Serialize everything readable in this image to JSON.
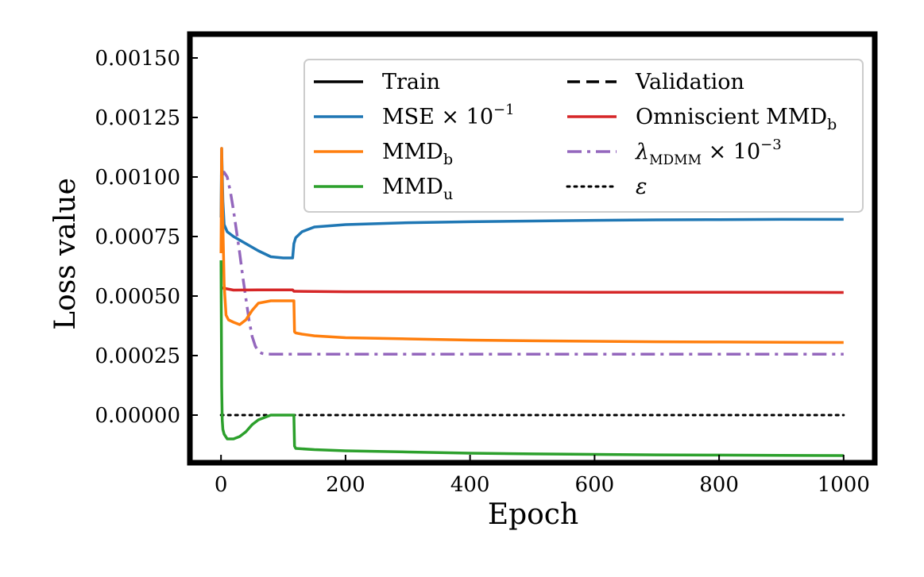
{
  "chart_data": {
    "type": "line",
    "xlabel": "Epoch",
    "ylabel": "Loss value",
    "xlim": [
      -50,
      1050
    ],
    "ylim": [
      -0.0002,
      0.0016
    ],
    "xticks": [
      0,
      200,
      400,
      600,
      800,
      1000
    ],
    "xtick_labels": [
      "0",
      "200",
      "400",
      "600",
      "800",
      "1000"
    ],
    "yticks": [
      0.0,
      0.00025,
      0.0005,
      0.00075,
      0.001,
      0.00125,
      0.0015
    ],
    "ytick_labels": [
      "0.00000",
      "0.00025",
      "0.00050",
      "0.00075",
      "0.00100",
      "0.00125",
      "0.00150"
    ],
    "grid": false,
    "legend_position": "top-right",
    "legend": [
      {
        "key": "train",
        "label": "Train",
        "color": "#000000",
        "style": "solid"
      },
      {
        "key": "mse",
        "label": "MSE × 10",
        "sup": "−1",
        "color": "#1f77b4",
        "style": "solid"
      },
      {
        "key": "mmdb",
        "label": "MMD",
        "sub": "b",
        "color": "#ff7f0e",
        "style": "solid"
      },
      {
        "key": "mmdu",
        "label": "MMD",
        "sub": "u",
        "color": "#2ca02c",
        "style": "solid"
      },
      {
        "key": "validation",
        "label": "Validation",
        "color": "#000000",
        "style": "dashed"
      },
      {
        "key": "omni",
        "label": "Omniscient MMD",
        "sub": "b",
        "color": "#d62728",
        "style": "solid"
      },
      {
        "key": "lambda",
        "label": "λ",
        "sub": "MDMM",
        "suffix": " × 10",
        "sup": "−3",
        "color": "#9467bd",
        "style": "dashdot"
      },
      {
        "key": "eps",
        "label": "ε",
        "color": "#000000",
        "style": "dotted"
      }
    ],
    "series": [
      {
        "name": "MSE × 10^-1",
        "color": "#1f77b4",
        "style": "solid",
        "x": [
          0,
          1,
          3,
          5,
          10,
          20,
          40,
          60,
          80,
          100,
          115,
          117,
          120,
          130,
          150,
          200,
          300,
          400,
          500,
          600,
          700,
          800,
          900,
          1000
        ],
        "y": [
          0.00083,
          0.00112,
          0.0009,
          0.0008,
          0.00077,
          0.00075,
          0.00072,
          0.00069,
          0.000665,
          0.00066,
          0.00066,
          0.00072,
          0.000745,
          0.00077,
          0.00079,
          0.0008,
          0.000808,
          0.000812,
          0.000815,
          0.000818,
          0.00082,
          0.000821,
          0.000822,
          0.000822
        ]
      },
      {
        "name": "MMD_b",
        "color": "#ff7f0e",
        "style": "solid",
        "x": [
          0,
          1,
          2,
          3,
          5,
          8,
          12,
          20,
          30,
          40,
          50,
          60,
          80,
          100,
          117,
          118,
          120,
          130,
          150,
          200,
          300,
          400,
          500,
          600,
          700,
          800,
          900,
          1000
        ],
        "y": [
          0.00068,
          0.00112,
          0.00095,
          0.0008,
          0.00055,
          0.00042,
          0.0004,
          0.00039,
          0.00038,
          0.0004,
          0.00044,
          0.00047,
          0.00048,
          0.00048,
          0.00048,
          0.00035,
          0.000345,
          0.00034,
          0.000333,
          0.000325,
          0.00032,
          0.000315,
          0.000312,
          0.00031,
          0.000308,
          0.000307,
          0.000306,
          0.000305
        ]
      },
      {
        "name": "MMD_u",
        "color": "#2ca02c",
        "style": "solid",
        "x": [
          0,
          1,
          2,
          3,
          5,
          10,
          20,
          30,
          40,
          50,
          60,
          70,
          80,
          100,
          117,
          118,
          120,
          150,
          200,
          300,
          400,
          500,
          600,
          700,
          800,
          900,
          1000
        ],
        "y": [
          0.00065,
          0.00012,
          -2e-05,
          -6e-05,
          -8e-05,
          -0.0001,
          -0.0001,
          -9e-05,
          -7e-05,
          -4e-05,
          -2e-05,
          -1e-05,
          0.0,
          0.0,
          0.0,
          -0.00013,
          -0.00014,
          -0.000145,
          -0.00015,
          -0.000155,
          -0.00016,
          -0.000163,
          -0.000165,
          -0.000167,
          -0.000168,
          -0.000169,
          -0.00017
        ]
      },
      {
        "name": "Omniscient MMD_b",
        "color": "#d62728",
        "style": "solid",
        "x": [
          0,
          20,
          60,
          100,
          115,
          117,
          120,
          150,
          200,
          400,
          600,
          800,
          1000
        ],
        "y": [
          0.000535,
          0.000525,
          0.000526,
          0.000526,
          0.000526,
          0.00052,
          0.00052,
          0.000519,
          0.000518,
          0.000517,
          0.000516,
          0.000516,
          0.000515
        ]
      },
      {
        "name": "λ_MDMM × 10^-3",
        "color": "#9467bd",
        "style": "dashdot",
        "x": [
          0,
          5,
          10,
          15,
          20,
          25,
          30,
          35,
          40,
          45,
          50,
          55,
          60,
          65,
          70,
          80,
          100,
          200,
          400,
          600,
          800,
          1000
        ],
        "y": [
          0.001,
          0.00102,
          0.001,
          0.00094,
          0.00086,
          0.00077,
          0.00068,
          0.00058,
          0.00049,
          0.0004,
          0.00033,
          0.00029,
          0.000268,
          0.00026,
          0.000257,
          0.000256,
          0.000256,
          0.000256,
          0.000256,
          0.000256,
          0.000256,
          0.000256
        ]
      },
      {
        "name": "ε",
        "color": "#000000",
        "style": "dotted",
        "x": [
          0,
          1000
        ],
        "y": [
          0.0,
          0.0
        ]
      }
    ]
  }
}
